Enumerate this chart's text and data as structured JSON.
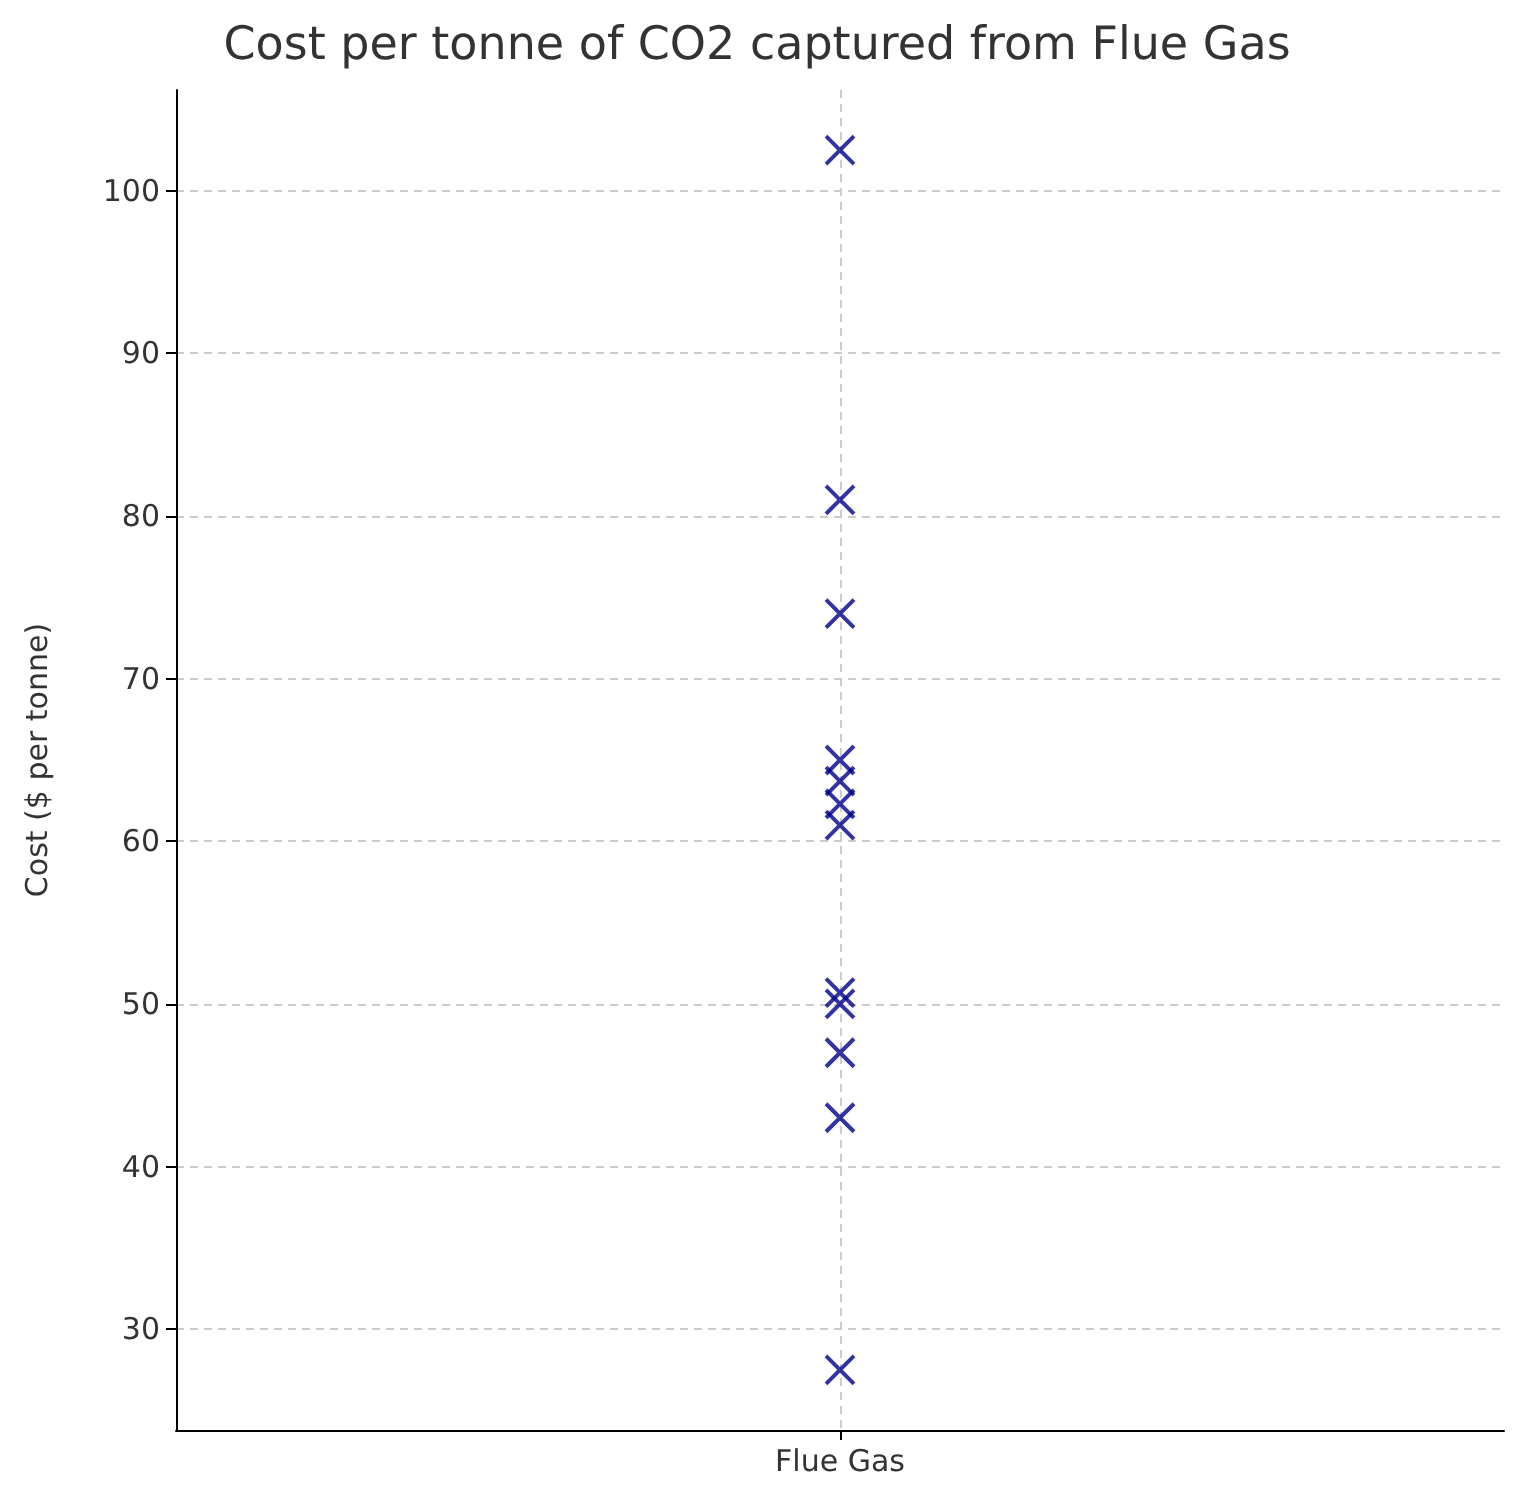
{
  "chart_data": {
    "type": "scatter",
    "title": "Cost per tonne of CO2 captured from Flue Gas",
    "ylabel": "Cost ($ per tonne)",
    "categories": [
      "Flue Gas"
    ],
    "series": [
      {
        "color": "#00008b",
        "x": [
          "Flue Gas",
          "Flue Gas",
          "Flue Gas",
          "Flue Gas",
          "Flue Gas",
          "Flue Gas",
          "Flue Gas",
          "Flue Gas",
          "Flue Gas",
          "Flue Gas",
          "Flue Gas",
          "Flue Gas"
        ],
        "values": [
          102.5,
          81,
          74,
          65,
          63.7,
          62.3,
          61,
          50.7,
          50,
          47,
          43,
          27.5
        ]
      }
    ],
    "ylim": [
      23.8,
      106.2
    ],
    "yticks": [
      30,
      40,
      50,
      60,
      70,
      80,
      90,
      100
    ],
    "grid": true,
    "marker": "cross"
  }
}
